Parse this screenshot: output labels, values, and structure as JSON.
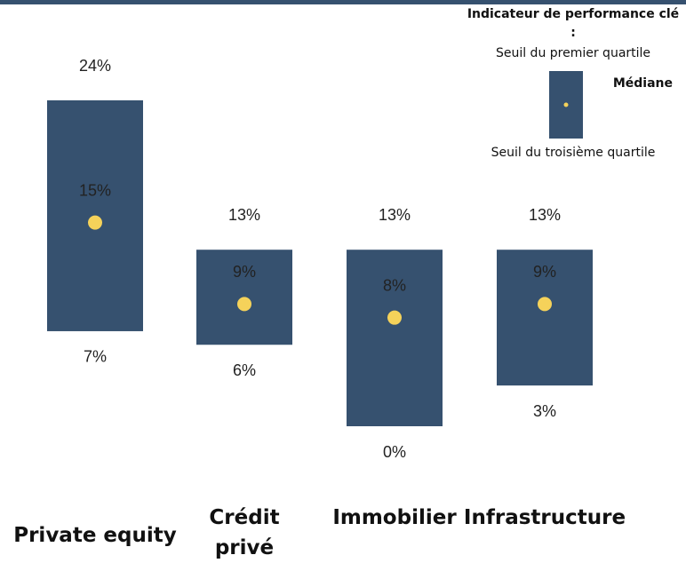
{
  "chart_data": {
    "type": "range",
    "legend_title": "Indicateur de performance clé :",
    "categories": [
      "Private equity",
      "Crédit privé",
      "Immobilier",
      "Infrastructure"
    ],
    "bar_color": "#36516f",
    "series": [
      {
        "name": "Seuil du premier quartile",
        "role": "high",
        "color": "#222222",
        "values": [
          24,
          13,
          13,
          13
        ],
        "value_labels": [
          "24%",
          "13%",
          "13%",
          "13%"
        ]
      },
      {
        "name": "Médiane",
        "role": "median",
        "color": "#f5d25a",
        "values": [
          15,
          9,
          8,
          9
        ],
        "value_labels": [
          "15%",
          "9%",
          "8%",
          "9%"
        ]
      },
      {
        "name": "Seuil du troisième quartile",
        "role": "low",
        "color": "#222222",
        "values": [
          7,
          6,
          0,
          3
        ],
        "value_labels": [
          "7%",
          "6%",
          "0%",
          "3%"
        ]
      }
    ]
  }
}
